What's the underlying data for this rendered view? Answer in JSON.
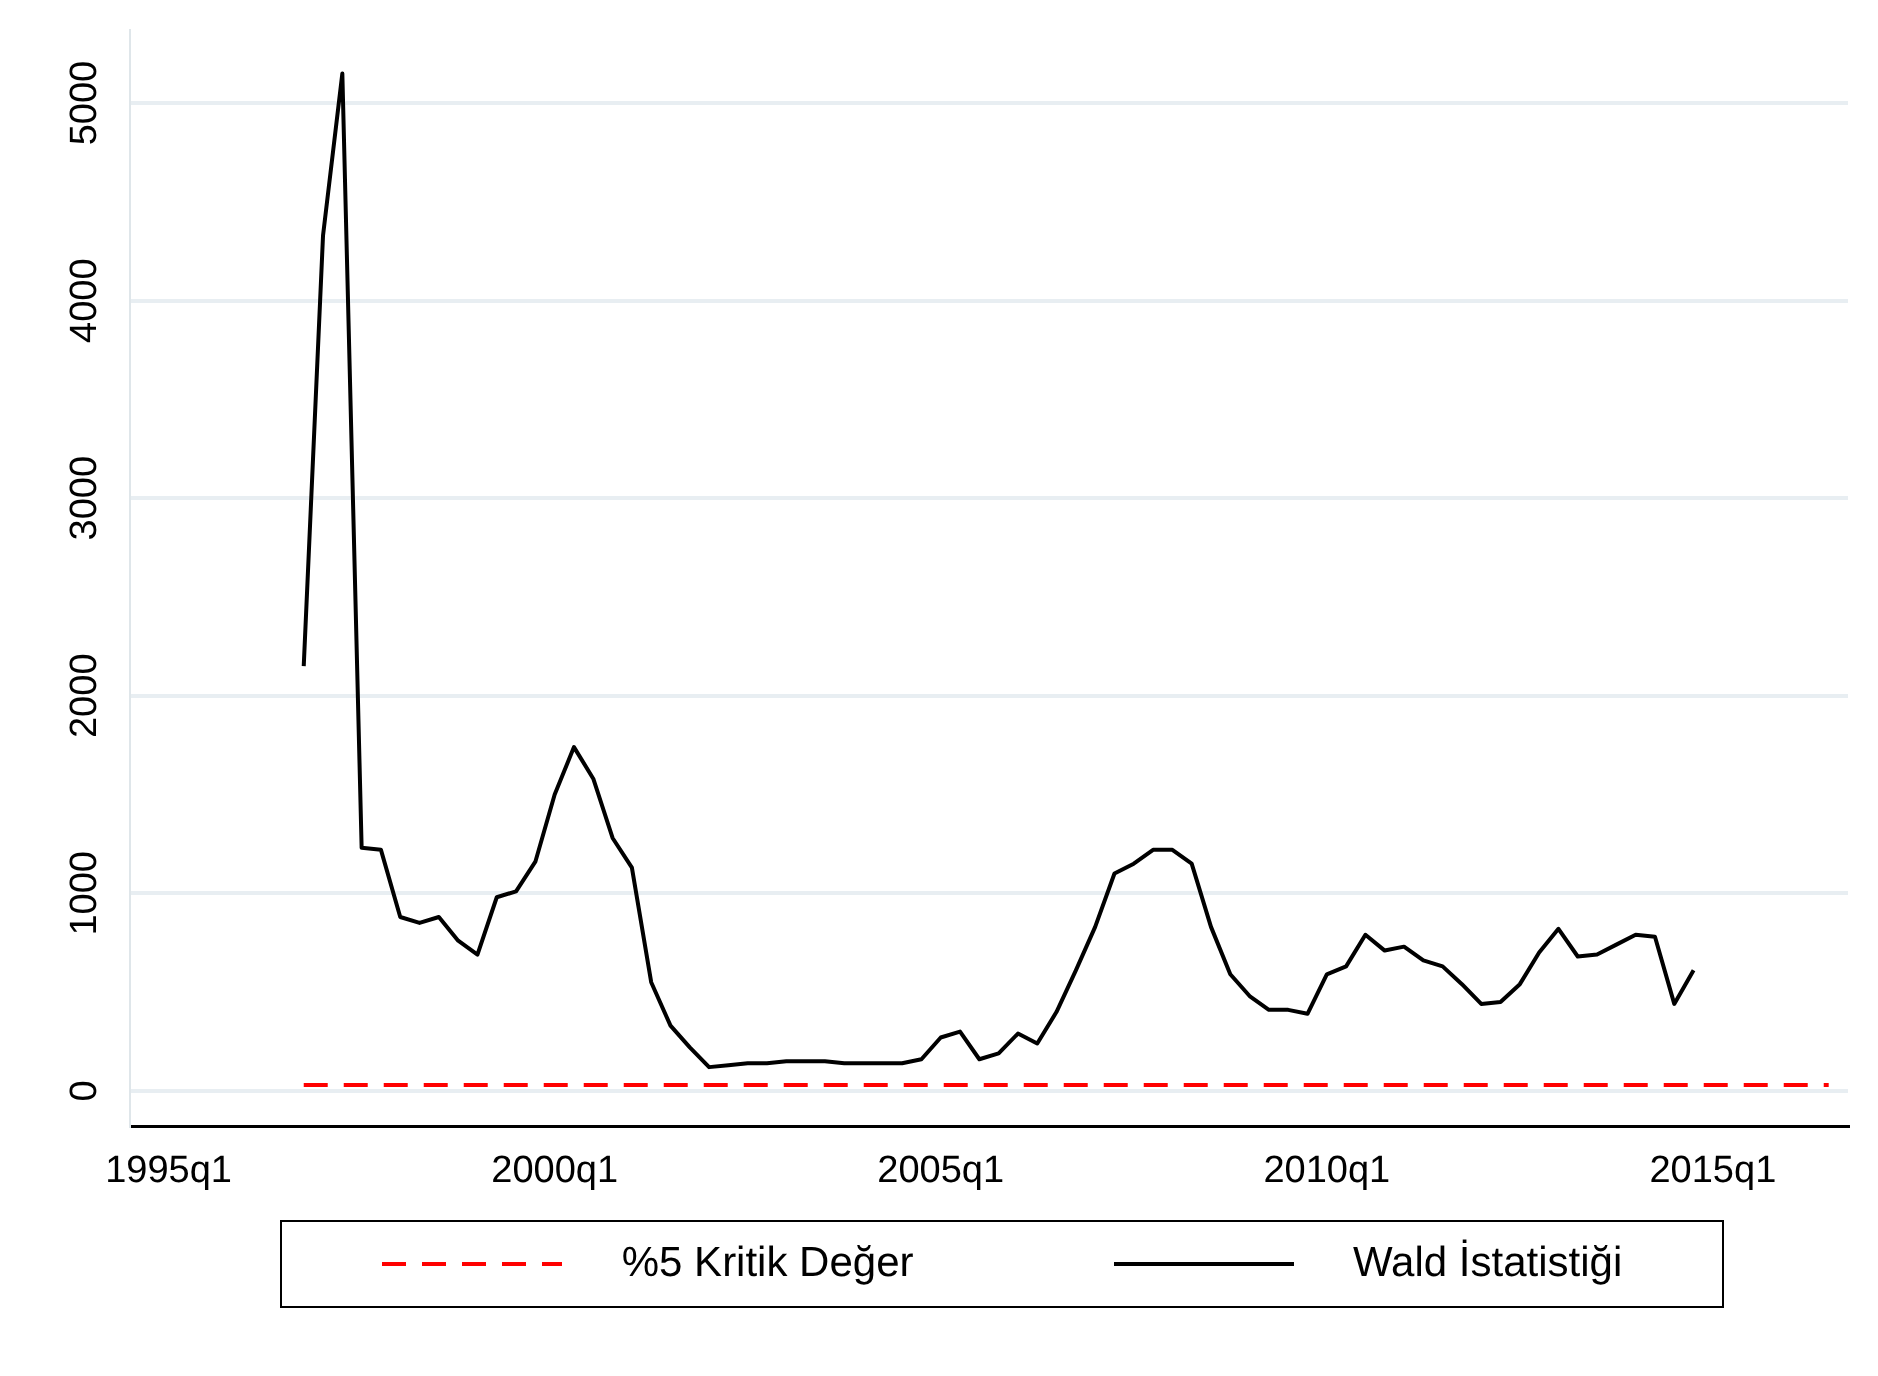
{
  "chart_data": {
    "type": "line",
    "marker": "none",
    "grid": "y",
    "legend": "bottom",
    "xlim": [
      "1994-07",
      "2016-10"
    ],
    "xticks": [
      {
        "value": "1995-01",
        "label": "1995q1"
      },
      {
        "value": "2000-01",
        "label": "2000q1"
      },
      {
        "value": "2005-01",
        "label": "2005q1"
      },
      {
        "value": "2010-01",
        "label": "2010q1"
      },
      {
        "value": "2015-01",
        "label": "2015q1"
      }
    ],
    "ylim": [
      -180,
      5370
    ],
    "yticks": [
      0,
      1000,
      2000,
      3000,
      4000,
      5000
    ],
    "series": [
      {
        "name": "%5 Kritik Değer",
        "color": "#ff0000",
        "line_style": "dashed",
        "x": [
          "1996-10",
          "2016-07"
        ],
        "values": [
          30,
          30
        ]
      },
      {
        "name": "Wald İstatistiği",
        "color": "#000000",
        "line_style": "solid",
        "x": [
          "1996-10",
          "1997-01",
          "1997-04",
          "1997-07",
          "1997-10",
          "1998-01",
          "1998-04",
          "1998-07",
          "1998-10",
          "1999-01",
          "1999-04",
          "1999-07",
          "1999-10",
          "2000-01",
          "2000-04",
          "2000-07",
          "2000-10",
          "2001-01",
          "2001-04",
          "2001-07",
          "2001-10",
          "2002-01",
          "2002-04",
          "2002-07",
          "2002-10",
          "2003-01",
          "2003-04",
          "2003-07",
          "2003-10",
          "2004-01",
          "2004-04",
          "2004-07",
          "2004-10",
          "2005-01",
          "2005-04",
          "2005-07",
          "2005-10",
          "2006-01",
          "2006-04",
          "2006-07",
          "2006-10",
          "2007-01",
          "2007-04",
          "2007-07",
          "2007-10",
          "2008-01",
          "2008-04",
          "2008-07",
          "2008-10",
          "2009-01",
          "2009-04",
          "2009-07",
          "2009-10",
          "2010-01",
          "2010-04",
          "2010-07",
          "2010-10",
          "2011-01",
          "2011-04",
          "2011-07",
          "2011-10",
          "2012-01",
          "2012-04",
          "2012-07",
          "2012-10",
          "2013-01",
          "2013-04",
          "2013-07",
          "2013-10",
          "2014-01",
          "2014-04",
          "2014-07",
          "2014-10"
        ],
        "values": [
          2150,
          4330,
          5150,
          1230,
          1220,
          880,
          850,
          880,
          760,
          690,
          980,
          1010,
          1160,
          1500,
          1740,
          1580,
          1280,
          1130,
          550,
          330,
          220,
          120,
          130,
          140,
          140,
          150,
          150,
          150,
          140,
          140,
          140,
          140,
          160,
          270,
          300,
          160,
          190,
          290,
          240,
          400,
          610,
          830,
          1100,
          1150,
          1220,
          1220,
          1150,
          830,
          590,
          480,
          410,
          410,
          390,
          590,
          630,
          790,
          710,
          730,
          660,
          630,
          540,
          440,
          450,
          540,
          700,
          820,
          680,
          690,
          740,
          790,
          780,
          440,
          610
        ]
      }
    ]
  }
}
